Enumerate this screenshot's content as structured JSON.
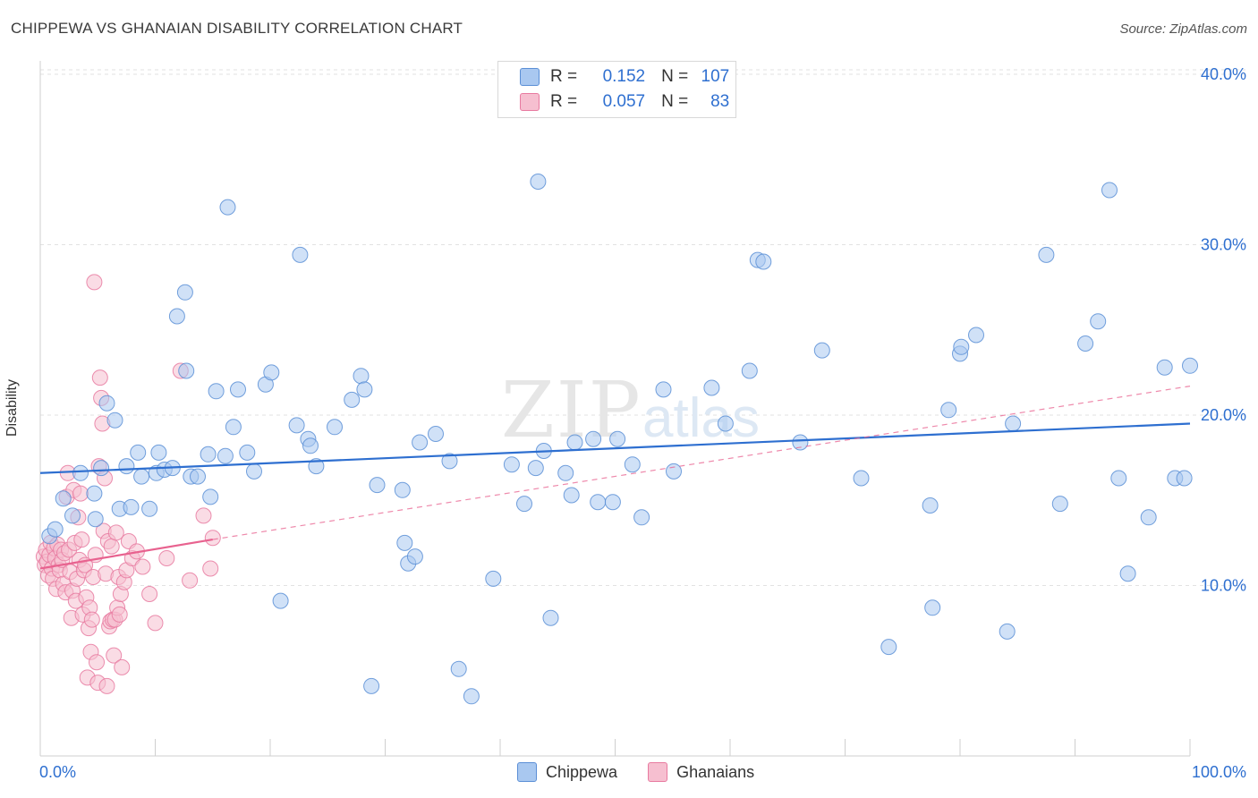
{
  "title": "CHIPPEWA VS GHANAIAN DISABILITY CORRELATION CHART",
  "source": "Source: ZipAtlas.com",
  "watermark": {
    "zip": "ZIP",
    "atlas": "atlas"
  },
  "legend": {
    "rows": [
      {
        "r_label": "R =",
        "r_value": "0.152",
        "n_label": "N =",
        "n_value": "107",
        "fill": "#a9c8f0",
        "stroke": "#5b8fd6"
      },
      {
        "r_label": "R =",
        "r_value": "0.057",
        "n_label": "N =",
        "n_value": "83",
        "fill": "#f6bfd0",
        "stroke": "#e87aa0"
      }
    ]
  },
  "bottom_legend": [
    {
      "label": "Chippewa",
      "fill": "#a9c8f0",
      "stroke": "#5b8fd6"
    },
    {
      "label": "Ghanaians",
      "fill": "#f6bfd0",
      "stroke": "#e87aa0"
    }
  ],
  "chart_data": {
    "type": "scatter",
    "title": "CHIPPEWA VS GHANAIAN DISABILITY CORRELATION CHART",
    "xlabel": "",
    "ylabel": "Disability",
    "xlim": [
      0,
      100
    ],
    "ylim": [
      0,
      42
    ],
    "x_tick_labels": [
      "0.0%",
      "100.0%"
    ],
    "y_ticks": [
      10,
      20,
      30,
      40
    ],
    "y_tick_labels": [
      "10.0%",
      "20.0%",
      "30.0%",
      "40.0%"
    ],
    "grid": true,
    "colors": {
      "blue": "#2e6fd0",
      "pink": "#e8628f"
    },
    "series": [
      {
        "name": "Chippewa",
        "marker_fill": "#a9c8f0",
        "marker_stroke": "#5b8fd6",
        "trend": {
          "x": [
            0,
            100
          ],
          "y": [
            16.6,
            19.5
          ],
          "color": "#2e6fd0",
          "style": "solid"
        },
        "points": [
          [
            0.8,
            12.9
          ],
          [
            1.3,
            13.3
          ],
          [
            2.0,
            15.1
          ],
          [
            2.8,
            14.1
          ],
          [
            3.5,
            16.6
          ],
          [
            4.7,
            15.4
          ],
          [
            4.8,
            13.9
          ],
          [
            5.3,
            16.9
          ],
          [
            5.8,
            20.7
          ],
          [
            6.5,
            19.7
          ],
          [
            6.9,
            14.5
          ],
          [
            7.5,
            17.0
          ],
          [
            7.9,
            14.6
          ],
          [
            8.5,
            17.8
          ],
          [
            8.8,
            16.4
          ],
          [
            9.5,
            14.5
          ],
          [
            10.1,
            16.6
          ],
          [
            10.3,
            17.8
          ],
          [
            10.8,
            16.8
          ],
          [
            11.5,
            16.9
          ],
          [
            11.9,
            25.8
          ],
          [
            12.6,
            27.2
          ],
          [
            12.7,
            22.6
          ],
          [
            13.1,
            16.4
          ],
          [
            13.7,
            16.4
          ],
          [
            14.6,
            17.7
          ],
          [
            14.8,
            15.2
          ],
          [
            15.3,
            21.4
          ],
          [
            16.1,
            17.6
          ],
          [
            16.3,
            32.2
          ],
          [
            16.8,
            19.3
          ],
          [
            17.2,
            21.5
          ],
          [
            18.0,
            17.8
          ],
          [
            18.6,
            16.7
          ],
          [
            19.6,
            21.8
          ],
          [
            20.1,
            22.5
          ],
          [
            20.9,
            9.1
          ],
          [
            22.3,
            19.4
          ],
          [
            22.6,
            29.4
          ],
          [
            23.3,
            18.6
          ],
          [
            23.5,
            18.2
          ],
          [
            24.0,
            17.0
          ],
          [
            25.6,
            19.3
          ],
          [
            27.1,
            20.9
          ],
          [
            27.9,
            22.3
          ],
          [
            28.2,
            21.5
          ],
          [
            28.8,
            4.1
          ],
          [
            29.3,
            15.9
          ],
          [
            31.5,
            15.6
          ],
          [
            31.7,
            12.5
          ],
          [
            32.0,
            11.3
          ],
          [
            32.6,
            11.7
          ],
          [
            33.0,
            18.4
          ],
          [
            34.4,
            18.9
          ],
          [
            35.6,
            17.3
          ],
          [
            36.4,
            5.1
          ],
          [
            37.5,
            3.5
          ],
          [
            39.4,
            10.4
          ],
          [
            41.0,
            17.1
          ],
          [
            42.1,
            14.8
          ],
          [
            43.1,
            16.9
          ],
          [
            43.3,
            33.7
          ],
          [
            43.8,
            17.9
          ],
          [
            44.4,
            8.1
          ],
          [
            45.7,
            16.6
          ],
          [
            46.2,
            15.3
          ],
          [
            46.5,
            18.4
          ],
          [
            48.1,
            18.6
          ],
          [
            48.5,
            14.9
          ],
          [
            49.8,
            14.9
          ],
          [
            50.2,
            18.6
          ],
          [
            51.5,
            17.1
          ],
          [
            52.3,
            14.0
          ],
          [
            54.2,
            21.5
          ],
          [
            55.1,
            16.7
          ],
          [
            58.4,
            21.6
          ],
          [
            59.6,
            19.5
          ],
          [
            61.7,
            22.6
          ],
          [
            62.4,
            29.1
          ],
          [
            62.9,
            29.0
          ],
          [
            66.1,
            18.4
          ],
          [
            68.0,
            23.8
          ],
          [
            71.4,
            16.3
          ],
          [
            73.8,
            6.4
          ],
          [
            77.4,
            14.7
          ],
          [
            77.6,
            8.7
          ],
          [
            79.0,
            20.3
          ],
          [
            80.0,
            23.6
          ],
          [
            80.1,
            24.0
          ],
          [
            81.4,
            24.7
          ],
          [
            84.1,
            7.3
          ],
          [
            84.6,
            19.5
          ],
          [
            87.5,
            29.4
          ],
          [
            88.7,
            14.8
          ],
          [
            90.9,
            24.2
          ],
          [
            92.0,
            25.5
          ],
          [
            93.0,
            33.2
          ],
          [
            93.8,
            16.3
          ],
          [
            94.6,
            10.7
          ],
          [
            96.4,
            14.0
          ],
          [
            97.8,
            22.8
          ],
          [
            98.7,
            16.3
          ],
          [
            99.5,
            16.3
          ],
          [
            100.0,
            22.9
          ]
        ]
      },
      {
        "name": "Ghanaians",
        "marker_fill": "#f6bfd0",
        "marker_stroke": "#e87aa0",
        "trend": {
          "x": [
            0,
            15
          ],
          "y": [
            11.0,
            12.7
          ],
          "color": "#e8628f",
          "style": "solid",
          "extended": {
            "x": [
              15,
              100
            ],
            "y": [
              12.7,
              21.7
            ],
            "style": "dashed"
          }
        },
        "points": [
          [
            0.3,
            11.7
          ],
          [
            0.4,
            11.2
          ],
          [
            0.5,
            12.1
          ],
          [
            0.6,
            11.4
          ],
          [
            0.7,
            10.6
          ],
          [
            0.8,
            11.8
          ],
          [
            0.9,
            12.5
          ],
          [
            1.0,
            11.0
          ],
          [
            1.1,
            10.4
          ],
          [
            1.2,
            12.2
          ],
          [
            1.3,
            11.6
          ],
          [
            1.4,
            9.8
          ],
          [
            1.5,
            12.4
          ],
          [
            1.6,
            11.2
          ],
          [
            1.7,
            10.9
          ],
          [
            1.8,
            12.1
          ],
          [
            1.9,
            11.5
          ],
          [
            2.0,
            10.1
          ],
          [
            2.1,
            11.9
          ],
          [
            2.2,
            9.6
          ],
          [
            2.3,
            15.2
          ],
          [
            2.4,
            16.6
          ],
          [
            2.5,
            12.1
          ],
          [
            2.6,
            10.8
          ],
          [
            2.7,
            8.1
          ],
          [
            2.8,
            9.7
          ],
          [
            2.9,
            15.6
          ],
          [
            3.0,
            12.5
          ],
          [
            3.1,
            9.1
          ],
          [
            3.2,
            10.4
          ],
          [
            3.3,
            14.0
          ],
          [
            3.4,
            11.5
          ],
          [
            3.5,
            15.4
          ],
          [
            3.6,
            12.7
          ],
          [
            3.7,
            8.3
          ],
          [
            3.8,
            10.9
          ],
          [
            3.9,
            11.2
          ],
          [
            4.0,
            9.3
          ],
          [
            4.1,
            4.6
          ],
          [
            4.2,
            7.5
          ],
          [
            4.3,
            8.7
          ],
          [
            4.4,
            6.1
          ],
          [
            4.5,
            8.0
          ],
          [
            4.6,
            10.5
          ],
          [
            4.7,
            27.8
          ],
          [
            4.8,
            11.8
          ],
          [
            4.9,
            5.5
          ],
          [
            5.0,
            4.3
          ],
          [
            5.1,
            17.0
          ],
          [
            5.2,
            22.2
          ],
          [
            5.3,
            21.0
          ],
          [
            5.4,
            19.5
          ],
          [
            5.5,
            13.2
          ],
          [
            5.6,
            16.3
          ],
          [
            5.7,
            10.7
          ],
          [
            5.8,
            4.1
          ],
          [
            5.9,
            12.6
          ],
          [
            6.0,
            7.6
          ],
          [
            6.1,
            7.9
          ],
          [
            6.2,
            12.3
          ],
          [
            6.3,
            8.0
          ],
          [
            6.4,
            5.9
          ],
          [
            6.5,
            8.0
          ],
          [
            6.6,
            13.1
          ],
          [
            6.7,
            8.7
          ],
          [
            6.8,
            10.5
          ],
          [
            6.9,
            8.3
          ],
          [
            7.0,
            9.5
          ],
          [
            7.1,
            5.2
          ],
          [
            7.3,
            10.2
          ],
          [
            7.5,
            10.9
          ],
          [
            7.7,
            12.6
          ],
          [
            8.0,
            11.6
          ],
          [
            8.4,
            12.0
          ],
          [
            8.9,
            11.1
          ],
          [
            9.5,
            9.5
          ],
          [
            10.0,
            7.8
          ],
          [
            11.0,
            11.6
          ],
          [
            12.2,
            22.6
          ],
          [
            13.0,
            10.3
          ],
          [
            14.2,
            14.1
          ],
          [
            14.8,
            11.0
          ],
          [
            15.0,
            12.8
          ]
        ]
      }
    ]
  }
}
